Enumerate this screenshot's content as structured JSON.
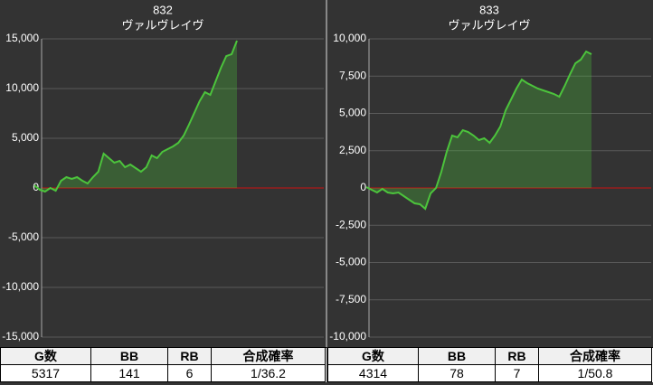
{
  "chart_data": [
    {
      "type": "line",
      "title": "832",
      "subtitle": "ヴァルヴレイヴ",
      "color": "#4cc43c",
      "values": [
        273,
        -182,
        -364,
        0,
        -273,
        727,
        1091,
        909,
        1091,
        727,
        455,
        1091,
        1636,
        3455,
        3000,
        2545,
        2727,
        2091,
        2364,
        2000,
        1636,
        2091,
        3273,
        3000,
        3636,
        3909,
        4182,
        4545,
        5273,
        6364,
        7545,
        8727,
        9636,
        9364,
        10727,
        12091,
        13273,
        13455,
        14818
      ],
      "ylim": [
        -15000,
        15000
      ],
      "yticks": [
        {
          "value": 15000,
          "label": "15,000"
        },
        {
          "value": 10000,
          "label": "10,000"
        },
        {
          "value": 5000,
          "label": "5,000"
        },
        0,
        {
          "value": -5000,
          "label": "-5,000"
        },
        {
          "value": -10000,
          "label": "-10,000"
        },
        {
          "value": -15000,
          "label": "-15,000"
        }
      ],
      "grid": true
    },
    {
      "type": "line",
      "title": "833",
      "subtitle": "ヴァルヴレイヴ",
      "color": "#4cc43c",
      "values": [
        61,
        -121,
        -303,
        -61,
        -303,
        -364,
        -303,
        -545,
        -788,
        -1030,
        -1091,
        -1394,
        -364,
        0,
        1091,
        2424,
        3515,
        3394,
        3879,
        3758,
        3515,
        3212,
        3333,
        3030,
        3515,
        4121,
        5212,
        5939,
        6667,
        7273,
        7030,
        6848,
        6667,
        6545,
        6424,
        6303,
        6121,
        6848,
        7636,
        8364,
        8606,
        9152,
        8970
      ],
      "ylim": [
        -10000,
        10000
      ],
      "yticks": [
        {
          "value": 10000,
          "label": "10,000"
        },
        {
          "value": 7500,
          "label": "7,500"
        },
        {
          "value": 5000,
          "label": "5,000"
        },
        {
          "value": 2500,
          "label": "2,500"
        },
        0,
        {
          "value": -2500,
          "label": "-2,500"
        },
        {
          "value": -5000,
          "label": "-5,000"
        },
        {
          "value": -7500,
          "label": "-7,500"
        },
        {
          "value": -10000,
          "label": "-10,000"
        }
      ],
      "grid": true
    }
  ],
  "tables": [
    {
      "header": [
        "G数",
        "BB",
        "RB",
        "合成確率"
      ],
      "row": [
        "5317",
        "141",
        "6",
        "1/36.2"
      ]
    },
    {
      "header": [
        "G数",
        "BB",
        "RB",
        "合成確率"
      ],
      "row": [
        "4314",
        "78",
        "7",
        "1/50.8"
      ]
    }
  ]
}
